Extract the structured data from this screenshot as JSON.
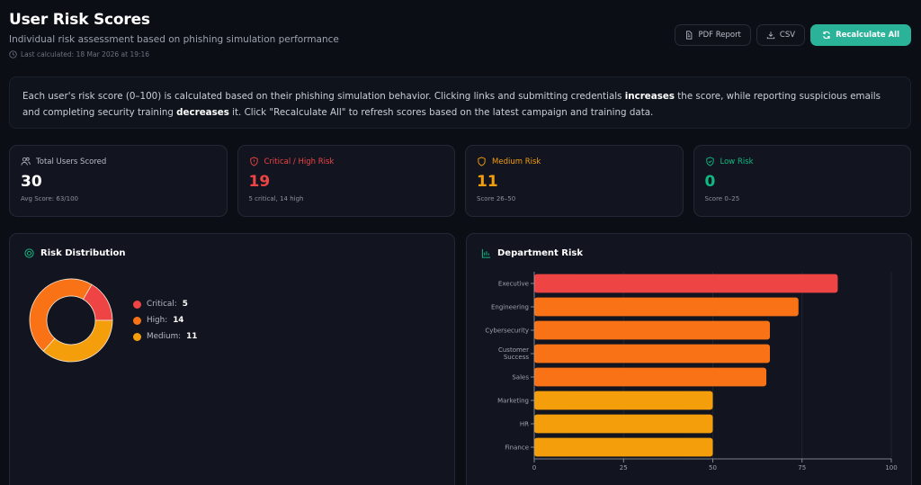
{
  "header": {
    "title": "User Risk Scores",
    "subtitle": "Individual risk assessment based on phishing simulation performance",
    "last_calculated": "Last calculated: 18 Mar 2026 at 19:16"
  },
  "actions": {
    "pdf_label": "PDF Report",
    "csv_label": "CSV",
    "recalc_label": "Recalculate All"
  },
  "info": {
    "part1": "Each user's risk score (0–100) is calculated based on their phishing simulation behavior. Clicking links and submitting credentials ",
    "bold1": "increases",
    "part2": " the score, while reporting suspicious emails and completing security training ",
    "bold2": "decreases",
    "part3": " it. Click \"Recalculate All\" to refresh scores based on the latest campaign and training data."
  },
  "stats": [
    {
      "label": "Total Users Scored",
      "value": "30",
      "sub": "Avg Score: 63/100",
      "color": "#ffffff",
      "label_color": "#b8bec9",
      "icon": "users-icon"
    },
    {
      "label": "Critical / High Risk",
      "value": "19",
      "sub": "5 critical, 14 high",
      "color": "#ef4444",
      "label_color": "#ef4444",
      "icon": "shield-alert-icon"
    },
    {
      "label": "Medium Risk",
      "value": "11",
      "sub": "Score 26–50",
      "color": "#f59e0b",
      "label_color": "#f59e0b",
      "icon": "shield-icon"
    },
    {
      "label": "Low Risk",
      "value": "0",
      "sub": "Score 0–25",
      "color": "#10b981",
      "label_color": "#10b981",
      "icon": "shield-check-icon"
    }
  ],
  "risk_distribution": {
    "title": "Risk Distribution",
    "legend": [
      {
        "label": "Critical:",
        "value": "5",
        "color": "#ef4444"
      },
      {
        "label": "High:",
        "value": "14",
        "color": "#f97316"
      },
      {
        "label": "Medium:",
        "value": "11",
        "color": "#f59e0b"
      }
    ]
  },
  "department_risk": {
    "title": "Department Risk"
  },
  "chart_data": [
    {
      "type": "pie",
      "title": "Risk Distribution",
      "categories": [
        "Critical",
        "High",
        "Medium"
      ],
      "values": [
        5,
        14,
        11
      ],
      "colors": [
        "#ef4444",
        "#f97316",
        "#f59e0b"
      ],
      "donut": true,
      "legend_position": "right"
    },
    {
      "type": "bar",
      "orientation": "horizontal",
      "title": "Department Risk",
      "categories": [
        "Executive",
        "Engineering",
        "Cybersecurity",
        "Customer Success",
        "Sales",
        "Marketing",
        "HR",
        "Finance"
      ],
      "values": [
        85,
        74,
        66,
        66,
        65,
        50,
        50,
        50
      ],
      "colors": [
        "#ef4444",
        "#f97316",
        "#f97316",
        "#f97316",
        "#f97316",
        "#f59e0b",
        "#f59e0b",
        "#f59e0b"
      ],
      "xlim": [
        0,
        100
      ],
      "xticks": [
        0,
        25,
        50,
        75,
        100
      ],
      "grid": true
    }
  ]
}
